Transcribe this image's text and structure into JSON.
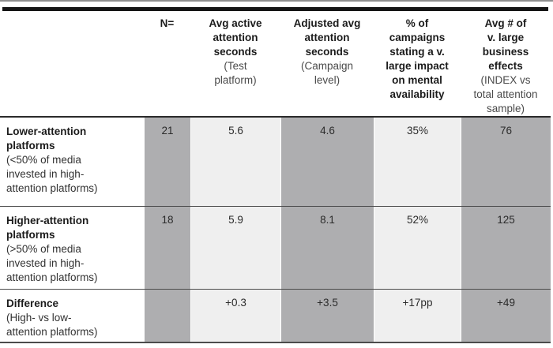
{
  "colors": {
    "column_shade_dark": "#aeaeb0",
    "column_shade_light": "#efefef",
    "top_rule_black": "#151515",
    "separator_gray": "#4c4c4c",
    "header_text": "#1b1b1b",
    "subtext_gray": "#4a4a4a"
  },
  "chart_data": {
    "type": "table",
    "columns": [
      {
        "label": "",
        "sub": ""
      },
      {
        "label": "N=",
        "sub": ""
      },
      {
        "label": "Avg active\nattention\nseconds",
        "sub": "(Test\nplatform)"
      },
      {
        "label": "Adjusted avg\nattention\nseconds",
        "sub": "(Campaign\nlevel)"
      },
      {
        "label": "% of\ncampaigns\nstating a v.\nlarge impact\non mental\navailability",
        "sub": ""
      },
      {
        "label": "Avg # of\nv. large\nbusiness\neffects",
        "sub": "(INDEX vs\ntotal attention\nsample)"
      }
    ],
    "rows": [
      {
        "title": "Lower-attention\nplatforms",
        "subtitle": "(<50% of media\ninvested in high-\nattention platforms)",
        "values": [
          "21",
          "5.6",
          "4.6",
          "35%",
          "76"
        ]
      },
      {
        "title": "Higher-attention\nplatforms",
        "subtitle": "(>50% of media\ninvested in high-\nattention platforms)",
        "values": [
          "18",
          "5.9",
          "8.1",
          "52%",
          "125"
        ]
      },
      {
        "title": "Difference",
        "subtitle": "(High- vs low-\nattention platforms)",
        "values": [
          "",
          "+0.3",
          "+3.5",
          "+17pp",
          "+49"
        ]
      }
    ]
  }
}
